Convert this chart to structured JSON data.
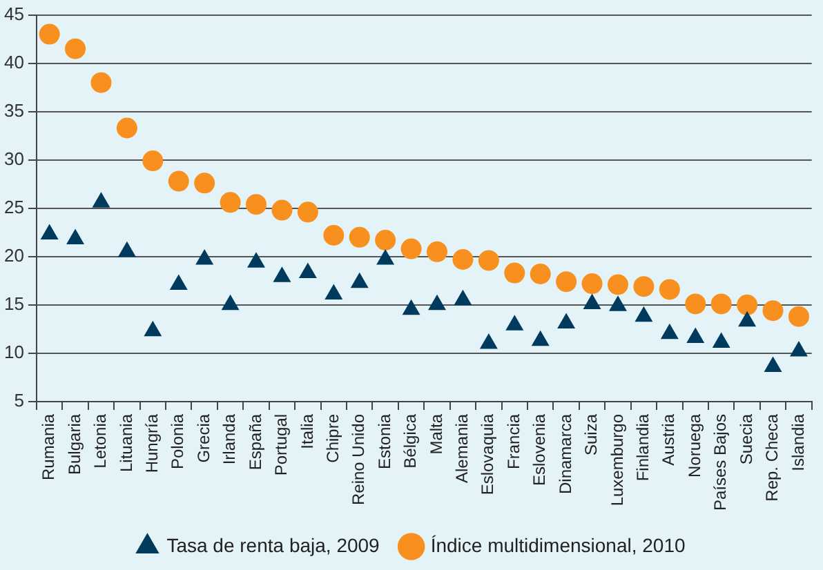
{
  "chart_data": {
    "type": "scatter",
    "categories": [
      "Rumania",
      "Bulgaria",
      "Letonia",
      "Lituania",
      "Hungría",
      "Polonia",
      "Grecia",
      "Irlanda",
      "España",
      "Portugal",
      "Italia",
      "Chipre",
      "Reino Unido",
      "Estonia",
      "Bélgica",
      "Malta",
      "Alemania",
      "Eslovaquia",
      "Francia",
      "Eslovenia",
      "Dinamarca",
      "Suiza",
      "Luxemburgo",
      "Finlandia",
      "Austria",
      "Noruega",
      "Países Bajos",
      "Suecia",
      "Rep. Checa",
      "Islandia"
    ],
    "series": [
      {
        "name": "Tasa de renta baja, 2009",
        "color": "#003a5c",
        "marker": "triangle",
        "values": [
          22.3,
          21.8,
          25.6,
          20.5,
          12.3,
          17.1,
          19.7,
          15.0,
          19.4,
          17.9,
          18.3,
          16.1,
          17.3,
          19.7,
          14.5,
          15.0,
          15.5,
          11.0,
          12.9,
          11.3,
          13.1,
          15.1,
          14.9,
          13.8,
          12.0,
          11.6,
          11.1,
          13.3,
          8.6,
          10.2
        ]
      },
      {
        "name": "Índice multidimensional, 2010",
        "color": "#f7901e",
        "marker": "circle",
        "values": [
          43.0,
          41.5,
          38.0,
          33.3,
          29.9,
          27.8,
          27.6,
          25.6,
          25.4,
          24.8,
          24.6,
          22.2,
          22.0,
          21.7,
          20.8,
          20.5,
          19.7,
          19.6,
          18.3,
          18.2,
          17.4,
          17.2,
          17.1,
          16.9,
          16.6,
          15.1,
          15.1,
          15.0,
          14.4,
          13.8
        ]
      }
    ],
    "ylim": [
      5,
      45
    ],
    "yticks": [
      5,
      10,
      15,
      20,
      25,
      30,
      35,
      40,
      45
    ],
    "grid": "y",
    "legend": "bottom"
  }
}
